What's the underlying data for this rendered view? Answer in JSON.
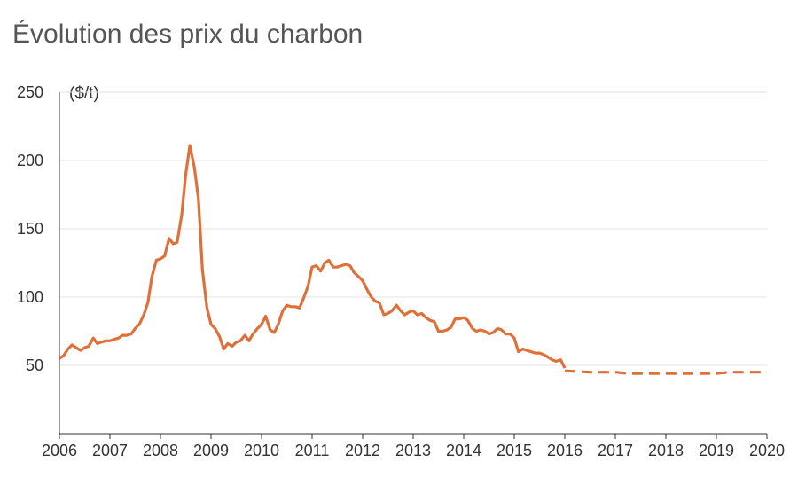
{
  "chart_data": {
    "type": "line",
    "title": "Évolution des prix du charbon",
    "unit": "($/t)",
    "xlim": [
      2006,
      2020
    ],
    "ylim": [
      0,
      250
    ],
    "x_ticks": [
      "2006",
      "2007",
      "2008",
      "2009",
      "2010",
      "2011",
      "2012",
      "2013",
      "2014",
      "2015",
      "2016",
      "2017",
      "2018",
      "2019",
      "2020"
    ],
    "y_ticks": [
      "50",
      "100",
      "150",
      "200",
      "250"
    ],
    "grid": true,
    "colors": {
      "line": "#e0703a",
      "grid": "#e3e3e3",
      "axis": "#333333"
    },
    "series": [
      {
        "style": "solid",
        "points": [
          [
            2006.0,
            55
          ],
          [
            2006.08,
            57
          ],
          [
            2006.17,
            62
          ],
          [
            2006.25,
            65
          ],
          [
            2006.33,
            63
          ],
          [
            2006.42,
            61
          ],
          [
            2006.5,
            63
          ],
          [
            2006.58,
            64
          ],
          [
            2006.67,
            70
          ],
          [
            2006.75,
            66
          ],
          [
            2006.83,
            67
          ],
          [
            2006.92,
            68
          ],
          [
            2007.0,
            68
          ],
          [
            2007.08,
            69
          ],
          [
            2007.17,
            70
          ],
          [
            2007.25,
            72
          ],
          [
            2007.33,
            72
          ],
          [
            2007.42,
            73
          ],
          [
            2007.5,
            77
          ],
          [
            2007.58,
            80
          ],
          [
            2007.67,
            87
          ],
          [
            2007.75,
            96
          ],
          [
            2007.83,
            115
          ],
          [
            2007.92,
            127
          ],
          [
            2008.0,
            128
          ],
          [
            2008.08,
            130
          ],
          [
            2008.17,
            143
          ],
          [
            2008.25,
            139
          ],
          [
            2008.33,
            140
          ],
          [
            2008.42,
            160
          ],
          [
            2008.5,
            190
          ],
          [
            2008.58,
            211
          ],
          [
            2008.67,
            195
          ],
          [
            2008.75,
            172
          ],
          [
            2008.83,
            120
          ],
          [
            2008.92,
            92
          ],
          [
            2009.0,
            80
          ],
          [
            2009.08,
            77
          ],
          [
            2009.17,
            71
          ],
          [
            2009.25,
            62
          ],
          [
            2009.33,
            66
          ],
          [
            2009.42,
            64
          ],
          [
            2009.5,
            67
          ],
          [
            2009.58,
            68
          ],
          [
            2009.67,
            72
          ],
          [
            2009.75,
            68
          ],
          [
            2009.83,
            73
          ],
          [
            2009.92,
            77
          ],
          [
            2010.0,
            80
          ],
          [
            2010.08,
            86
          ],
          [
            2010.17,
            76
          ],
          [
            2010.25,
            74
          ],
          [
            2010.33,
            80
          ],
          [
            2010.42,
            90
          ],
          [
            2010.5,
            94
          ],
          [
            2010.58,
            93
          ],
          [
            2010.67,
            93
          ],
          [
            2010.75,
            92
          ],
          [
            2010.83,
            99
          ],
          [
            2010.92,
            108
          ],
          [
            2011.0,
            122
          ],
          [
            2011.08,
            123
          ],
          [
            2011.17,
            119
          ],
          [
            2011.25,
            125
          ],
          [
            2011.33,
            127
          ],
          [
            2011.42,
            122
          ],
          [
            2011.5,
            122
          ],
          [
            2011.58,
            123
          ],
          [
            2011.67,
            124
          ],
          [
            2011.75,
            123
          ],
          [
            2011.83,
            118
          ],
          [
            2011.92,
            115
          ],
          [
            2012.0,
            112
          ],
          [
            2012.08,
            106
          ],
          [
            2012.17,
            100
          ],
          [
            2012.25,
            97
          ],
          [
            2012.33,
            96
          ],
          [
            2012.42,
            87
          ],
          [
            2012.5,
            88
          ],
          [
            2012.58,
            90
          ],
          [
            2012.67,
            94
          ],
          [
            2012.75,
            90
          ],
          [
            2012.83,
            87
          ],
          [
            2012.92,
            89
          ],
          [
            2013.0,
            90
          ],
          [
            2013.08,
            87
          ],
          [
            2013.17,
            88
          ],
          [
            2013.25,
            85
          ],
          [
            2013.33,
            83
          ],
          [
            2013.42,
            82
          ],
          [
            2013.5,
            75
          ],
          [
            2013.58,
            75
          ],
          [
            2013.67,
            76
          ],
          [
            2013.75,
            78
          ],
          [
            2013.83,
            84
          ],
          [
            2013.92,
            84
          ],
          [
            2014.0,
            85
          ],
          [
            2014.08,
            83
          ],
          [
            2014.17,
            77
          ],
          [
            2014.25,
            75
          ],
          [
            2014.33,
            76
          ],
          [
            2014.42,
            75
          ],
          [
            2014.5,
            73
          ],
          [
            2014.58,
            74
          ],
          [
            2014.67,
            77
          ],
          [
            2014.75,
            76
          ],
          [
            2014.83,
            73
          ],
          [
            2014.92,
            73
          ],
          [
            2015.0,
            70
          ],
          [
            2015.08,
            60
          ],
          [
            2015.17,
            62
          ],
          [
            2015.25,
            61
          ],
          [
            2015.33,
            60
          ],
          [
            2015.42,
            59
          ],
          [
            2015.5,
            59
          ],
          [
            2015.58,
            58
          ],
          [
            2015.67,
            56
          ],
          [
            2015.75,
            54
          ],
          [
            2015.83,
            53
          ],
          [
            2015.92,
            54
          ],
          [
            2016.0,
            48
          ]
        ]
      },
      {
        "style": "dashed",
        "points": [
          [
            2016.0,
            46
          ],
          [
            2016.5,
            45
          ],
          [
            2017.0,
            45
          ],
          [
            2017.25,
            44
          ],
          [
            2017.5,
            44
          ],
          [
            2018.0,
            44
          ],
          [
            2018.5,
            44
          ],
          [
            2019.0,
            44
          ],
          [
            2019.25,
            45
          ],
          [
            2019.5,
            45
          ],
          [
            2020.0,
            45
          ]
        ]
      }
    ]
  }
}
